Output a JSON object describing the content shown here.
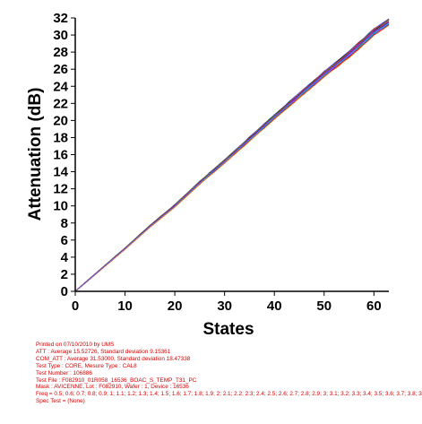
{
  "chart_data": {
    "type": "line",
    "xlabel": "States",
    "ylabel": "Attenuation (dB)",
    "xlim": [
      0,
      63
    ],
    "ylim": [
      0,
      32
    ],
    "x_ticks": [
      "0",
      "10",
      "20",
      "30",
      "40",
      "50",
      "60"
    ],
    "y_ticks": [
      "0",
      "2",
      "4",
      "6",
      "8",
      "10",
      "12",
      "14",
      "16",
      "18",
      "20",
      "22",
      "24",
      "26",
      "28",
      "30",
      "32"
    ],
    "grid": false,
    "series_count_description": "many overlapping colored traces",
    "series": [
      {
        "values_x": [
          0,
          5,
          10,
          15,
          20,
          25,
          30,
          35,
          40,
          45,
          50,
          55,
          60,
          63
        ],
        "values_y": [
          0,
          2.5,
          5.0,
          7.6,
          10.0,
          12.7,
          15.2,
          17.8,
          20.4,
          22.9,
          25.4,
          27.7,
          30.3,
          31.5
        ]
      }
    ],
    "colors": [
      "#1a1aff",
      "#ff00ff",
      "#00a000",
      "#ff0000",
      "#00c8c8",
      "#000000",
      "#808000",
      "#8000c0",
      "#ff8000",
      "#6060ff"
    ]
  },
  "footer": {
    "line1": "Printed on 07/10/2010 by UMS",
    "line2": "ATT : Average 15.52726, Standard deviation 9.15361",
    "line3": "COM_ATT : Average 31.53000, Standard deviation 18.47338",
    "line4": "Test Type : CORE, Mesure Type : CAL8",
    "line5": "Test Number : 106886",
    "line6": "Test File : F082910_01R058_16536_BOAC_S_TEMP_T31_PC",
    "line7": "Mask : AVICENNE, Lot : F082910, Wafer : 1, Device : 16536",
    "line8": "Freq = 0.5; 0.6; 0.7; 0.8; 0.9; 1; 1.1; 1.2; 1.3; 1.4; 1.5; 1.6; 1.7; 1.8; 1.9; 2; 2.1; 2.2; 2.3; 2.4; 2.5; 2.6; 2.7; 2.8; 2.9; 3; 3.1; 3.2; 3.3; 3.4; 3.5; 3.6; 3.7; 3.8; 3",
    "line9": "Spec Test = (None)"
  }
}
